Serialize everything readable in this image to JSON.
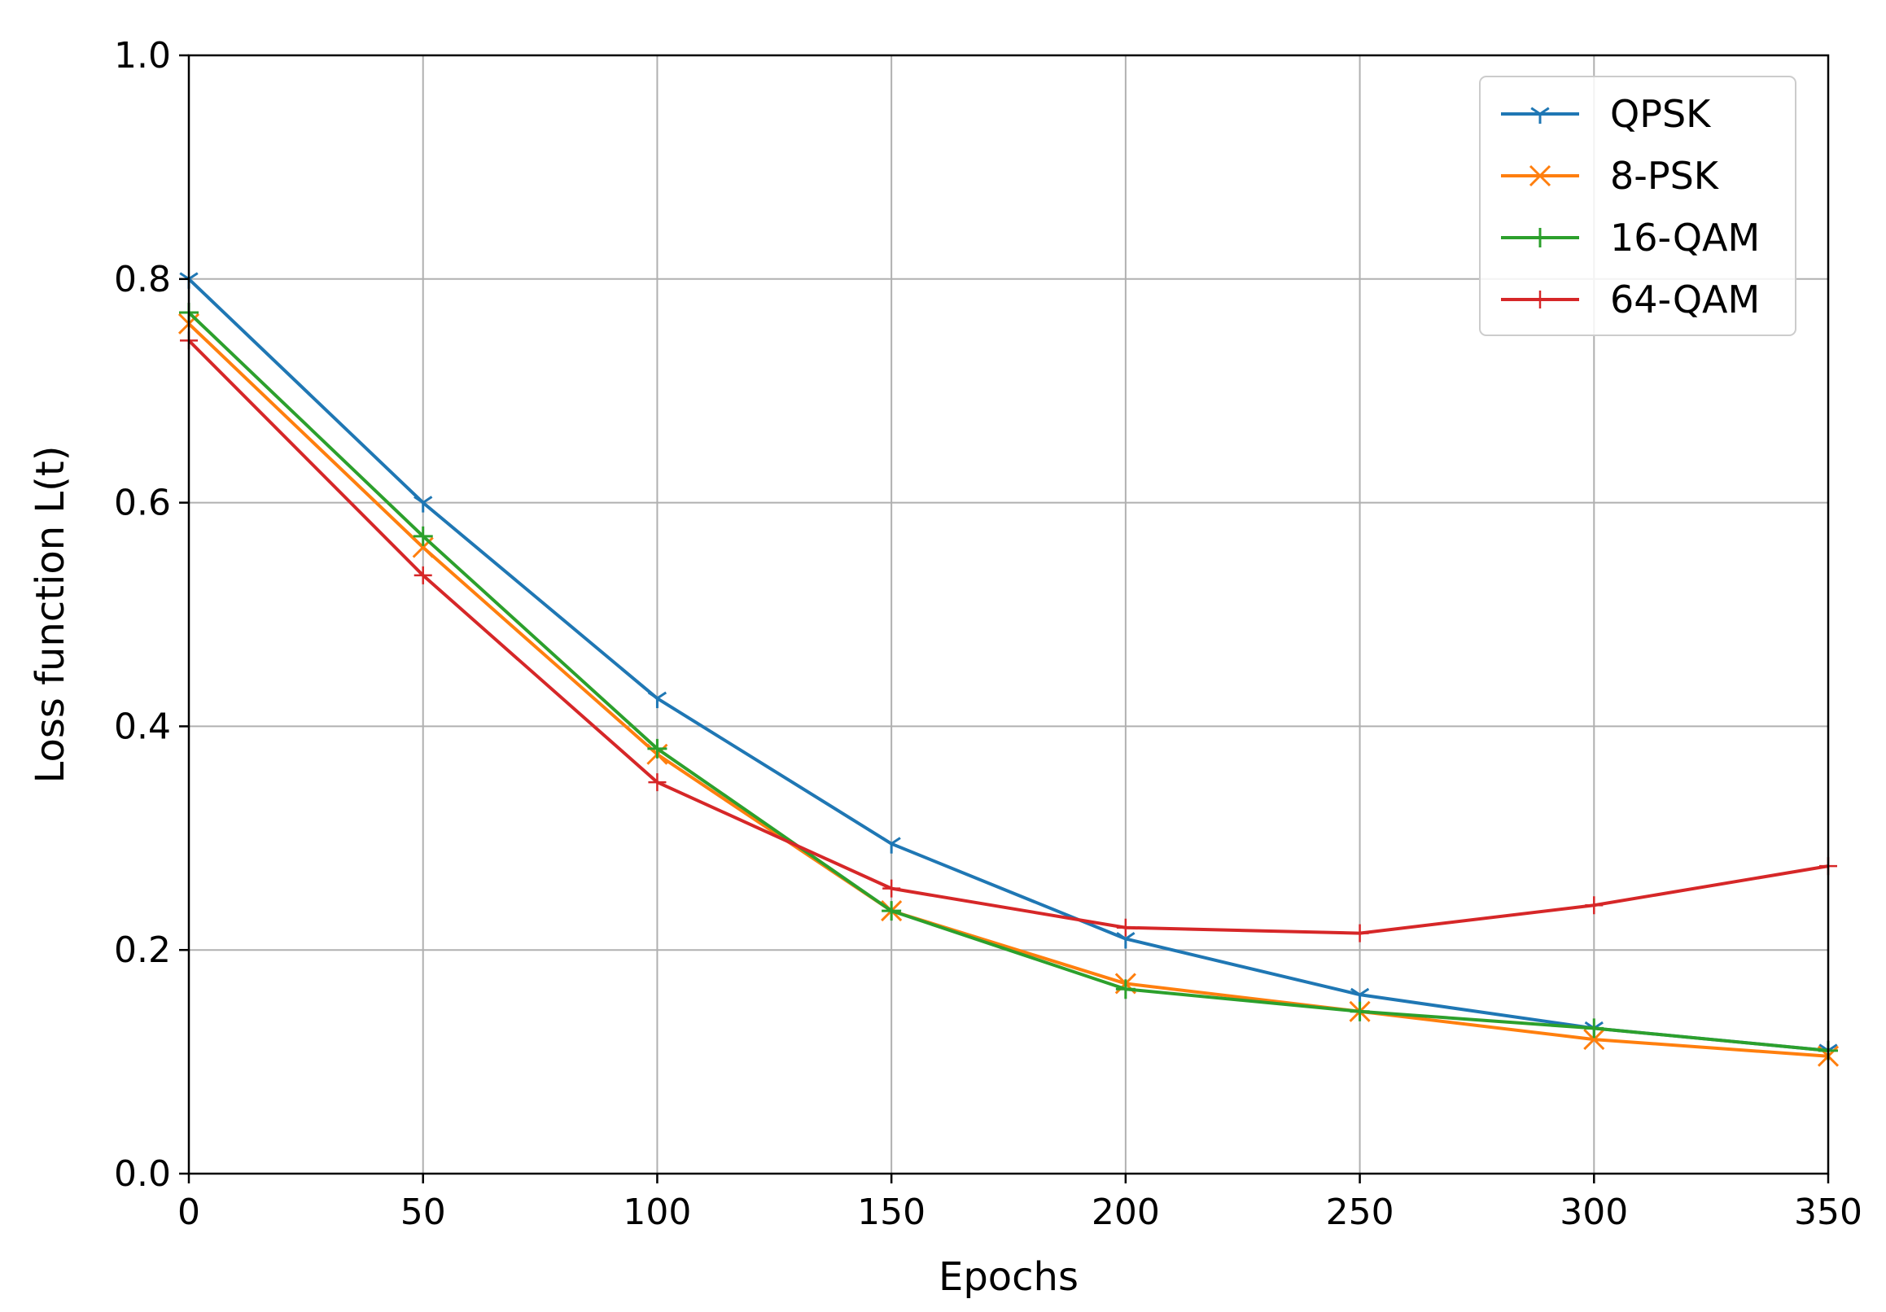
{
  "chart_data": {
    "type": "line",
    "title": "",
    "xlabel": "Epochs",
    "ylabel": "Loss function L(t)",
    "xlim": [
      0,
      350
    ],
    "ylim": [
      0,
      1.0
    ],
    "x_ticks": [
      0,
      50,
      100,
      150,
      200,
      250,
      300,
      350
    ],
    "x_tick_labels": [
      "0",
      "50",
      "100",
      "150",
      "200",
      "250",
      "300",
      "350"
    ],
    "y_ticks": [
      0.0,
      0.2,
      0.4,
      0.6,
      0.8,
      1.0
    ],
    "y_tick_labels": [
      "0.0",
      "0.2",
      "0.4",
      "0.6",
      "0.8",
      "1.0"
    ],
    "grid": true,
    "legend_position": "top-right",
    "x": [
      0,
      50,
      100,
      150,
      200,
      250,
      300,
      350
    ],
    "series": [
      {
        "name": "QPSK",
        "color": "#1f77b4",
        "marker": "tri-down",
        "values": [
          0.8,
          0.6,
          0.425,
          0.295,
          0.21,
          0.16,
          0.13,
          0.11
        ]
      },
      {
        "name": "8-PSK",
        "color": "#ff7f0e",
        "marker": "x",
        "values": [
          0.76,
          0.56,
          0.375,
          0.235,
          0.17,
          0.145,
          0.12,
          0.105
        ]
      },
      {
        "name": "16-QAM",
        "color": "#2ca02c",
        "marker": "plus",
        "values": [
          0.77,
          0.57,
          0.38,
          0.235,
          0.165,
          0.145,
          0.13,
          0.11
        ]
      },
      {
        "name": "64-QAM",
        "color": "#d62728",
        "marker": "plus-thin",
        "values": [
          0.745,
          0.535,
          0.35,
          0.255,
          0.22,
          0.215,
          0.24,
          0.275
        ]
      }
    ]
  }
}
